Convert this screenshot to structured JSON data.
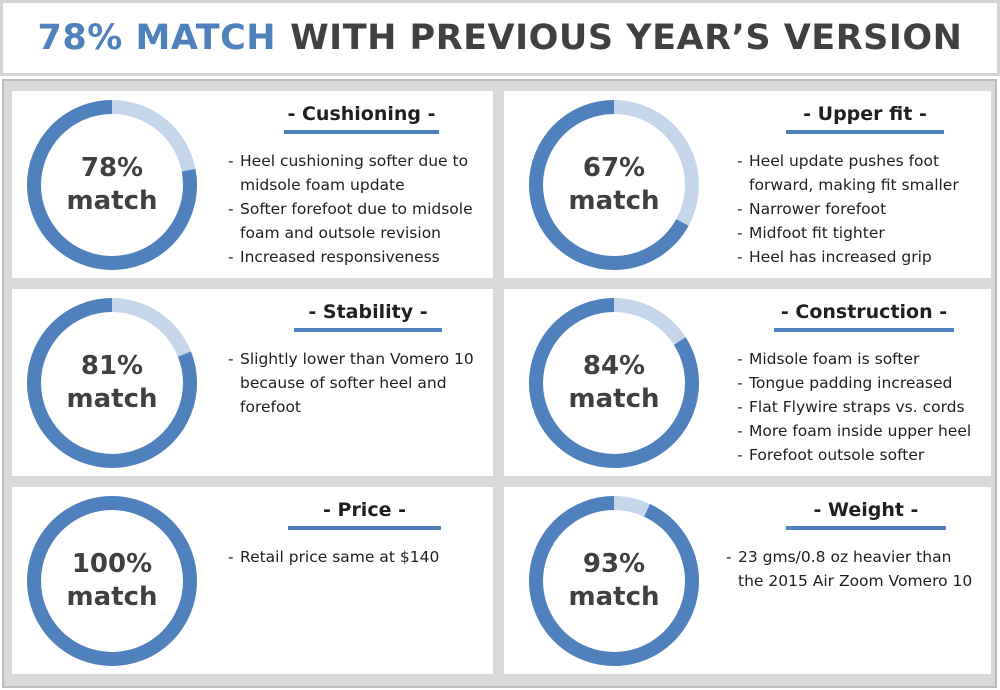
{
  "header": {
    "accent": "78% MATCH",
    "rest": "WITH PREVIOUS YEAR’S VERSION"
  },
  "colors": {
    "ring_main": "#4f81bd",
    "ring_light": "#c5d5ea",
    "title_underline": "#4f81bd",
    "background": "#d9d9d9"
  },
  "panels": [
    {
      "percent": 78,
      "percent_label": "78%",
      "match_label": "match",
      "title": "- Cushioning -",
      "bullets": [
        "Heel cushioning softer due to\nmidsole foam update",
        "Softer forefoot due to midsole\nfoam and outsole revision",
        "Increased responsiveness"
      ]
    },
    {
      "percent": 67,
      "percent_label": "67%",
      "match_label": "match",
      "title": "- Upper fit -",
      "bullets": [
        "Heel update pushes foot\n forward, making fit smaller",
        "Narrower forefoot",
        "Midfoot fit tighter",
        "Heel has increased grip"
      ]
    },
    {
      "percent": 81,
      "percent_label": "81%",
      "match_label": "match",
      "title": "- Stability -",
      "bullets": [
        "Slightly lower than Vomero 10\nbecause of softer heel and\nforefoot"
      ]
    },
    {
      "percent": 84,
      "percent_label": "84%",
      "match_label": "match",
      "title": "- Construction -",
      "bullets": [
        "Midsole foam is softer",
        "Tongue padding increased",
        "Flat Flywire straps vs. cords",
        "More foam inside upper heel",
        "Forefoot outsole softer"
      ]
    },
    {
      "percent": 100,
      "percent_label": "100%",
      "match_label": "match",
      "title": "- Price -",
      "bullets": [
        " Retail price same at $140"
      ]
    },
    {
      "percent": 93,
      "percent_label": "93%",
      "match_label": "match",
      "title": "- Weight -",
      "bullets": [
        "23 gms/0.8 oz heavier than\nthe 2015 Air Zoom Vomero 10"
      ]
    }
  ]
}
